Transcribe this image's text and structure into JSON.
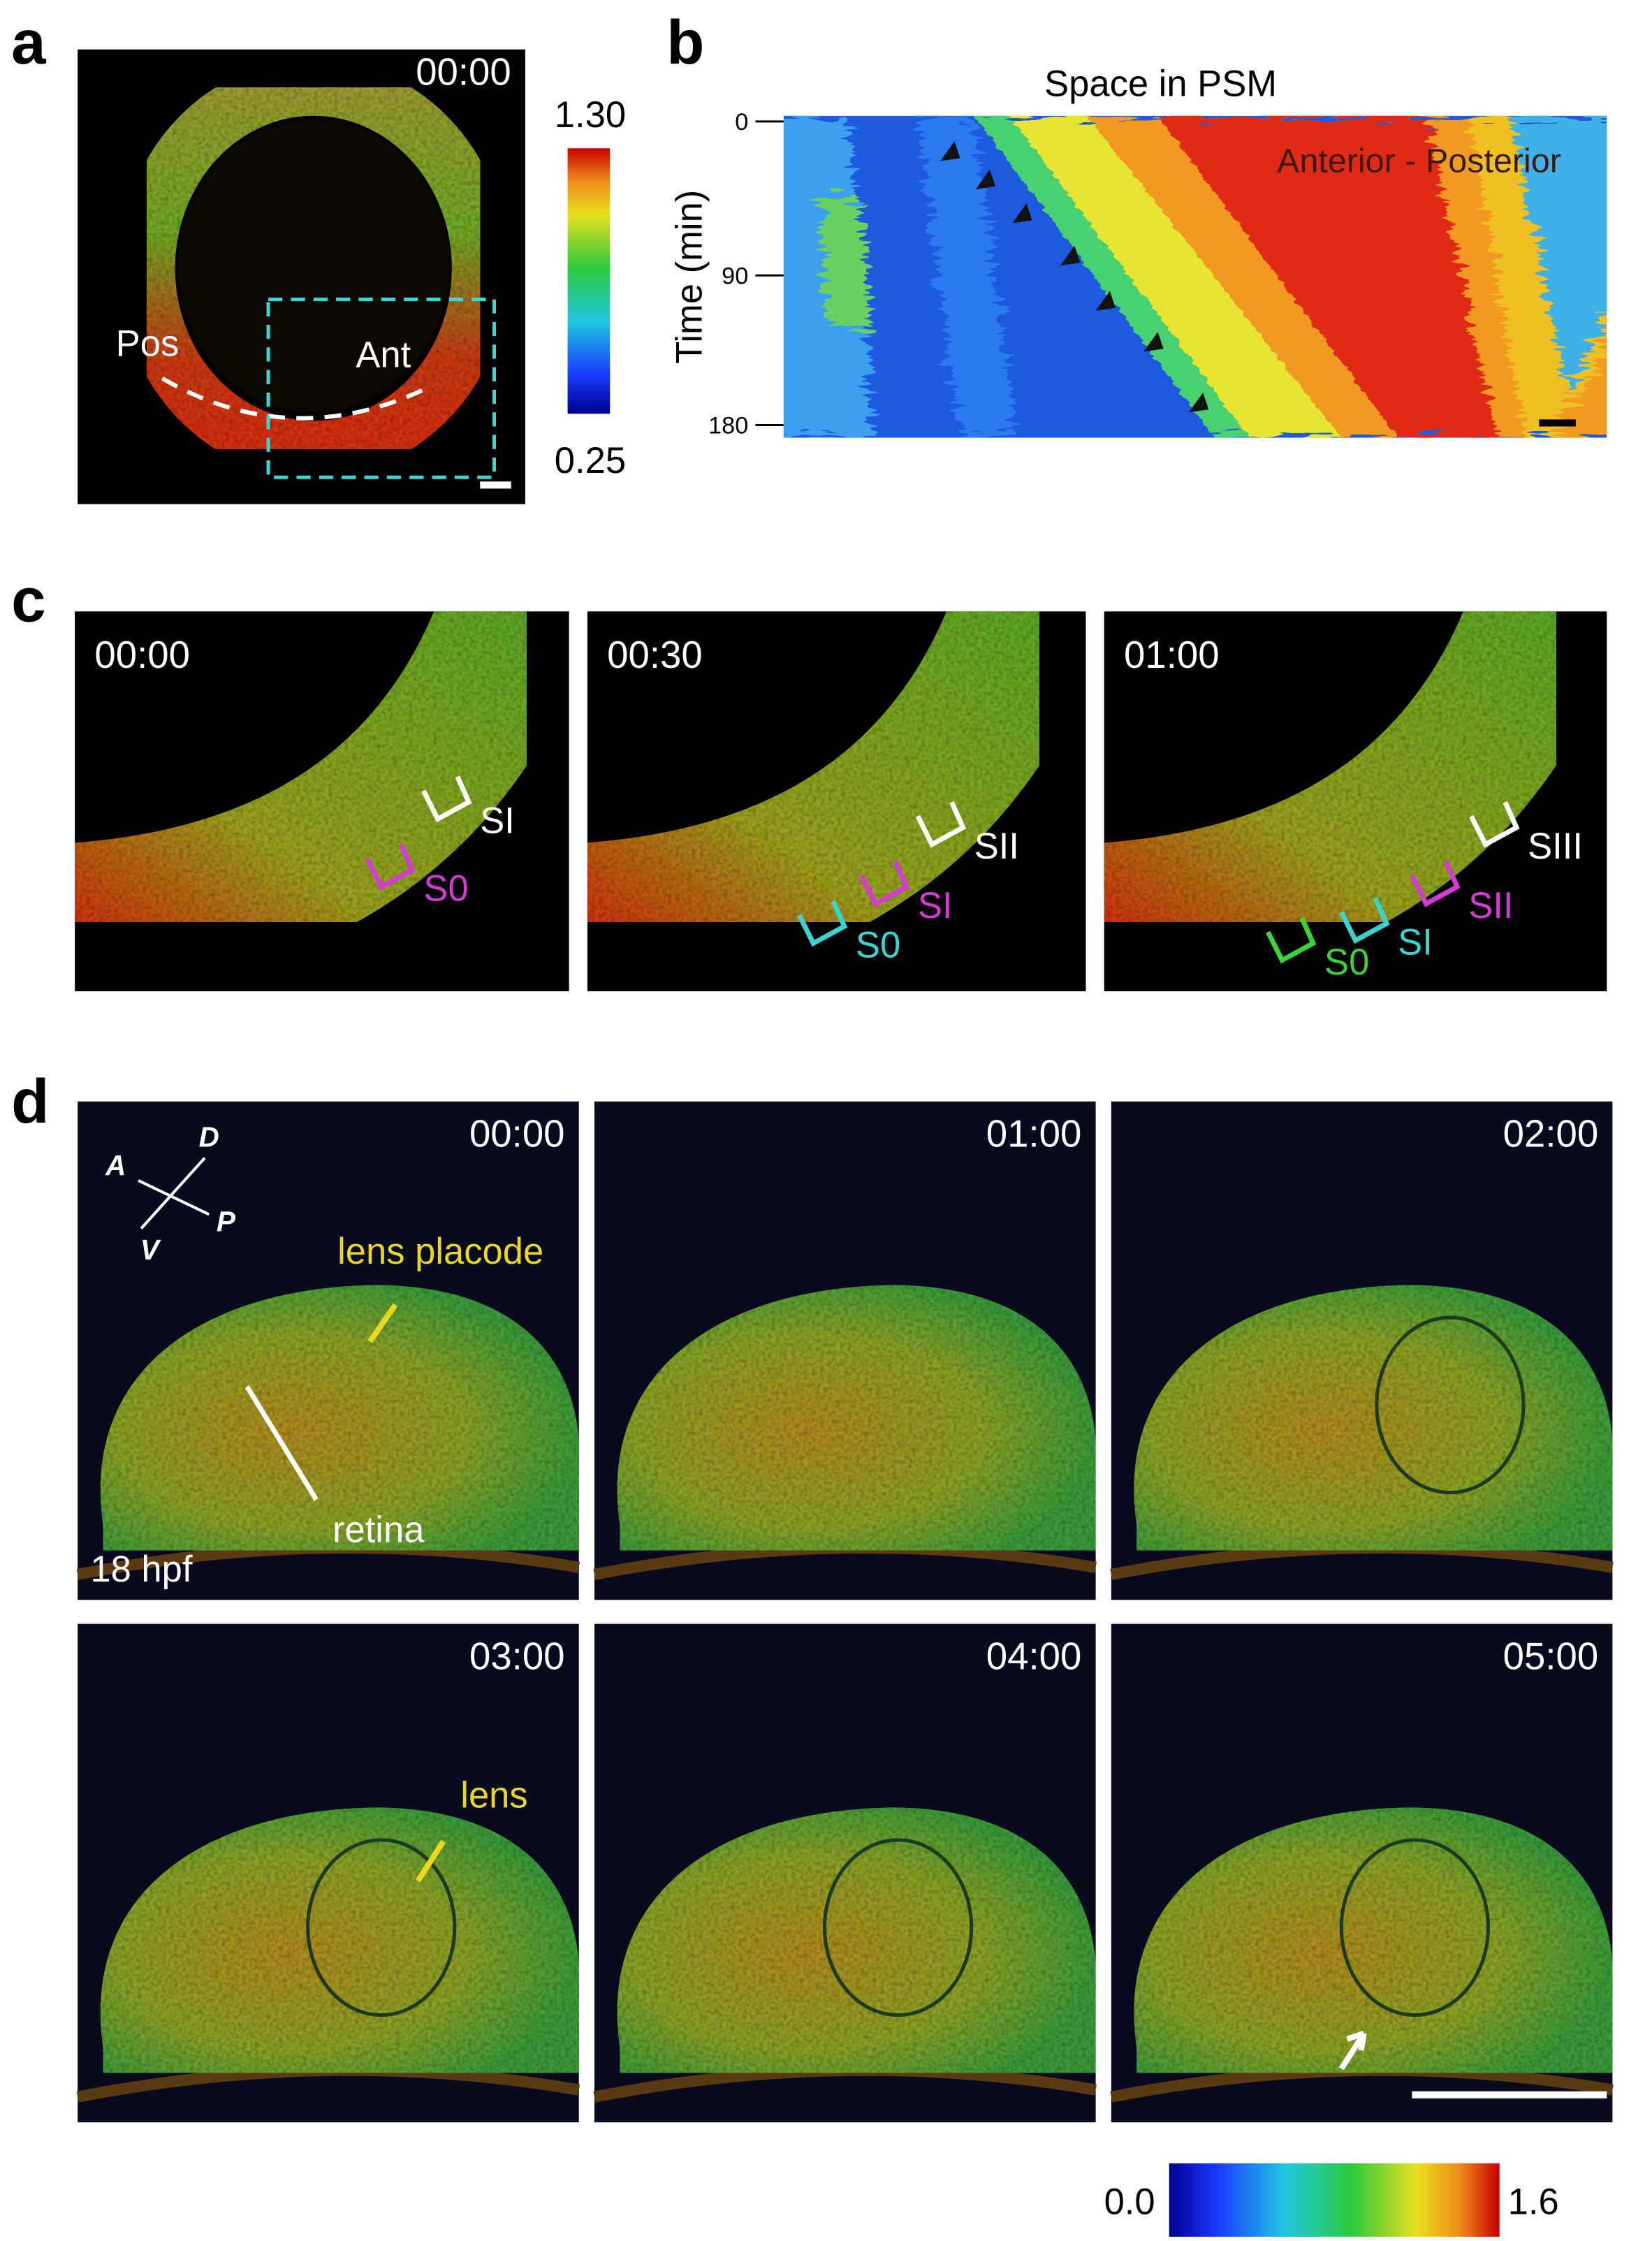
{
  "figure": {
    "a": {
      "label": "a",
      "time": "00:00",
      "labels": [
        "Pos",
        "Ant"
      ],
      "colorbar": {
        "max": "1.30",
        "min": "0.25"
      }
    },
    "b": {
      "label": "b",
      "title": "Space in PSM",
      "y_axis_label": "Time (min)",
      "y_ticks": [
        "0",
        "90",
        "180"
      ],
      "annotation": "Anterior - Posterior"
    },
    "c": {
      "label": "c",
      "frames": [
        {
          "time": "00:00",
          "segments": [
            "SI",
            "S0"
          ]
        },
        {
          "time": "00:30",
          "segments": [
            "SII",
            "SI",
            "S0"
          ]
        },
        {
          "time": "01:00",
          "segments": [
            "SIII",
            "SII",
            "SI",
            "S0"
          ]
        }
      ]
    },
    "d": {
      "label": "d",
      "compass": [
        "D",
        "P",
        "V",
        "A"
      ],
      "frames": [
        "00:00",
        "01:00",
        "02:00",
        "03:00",
        "04:00",
        "05:00"
      ],
      "annotations": {
        "lens_placode": "lens placode",
        "retina": "retina",
        "stage": "18 hpf",
        "lens": "lens"
      },
      "colorbar": {
        "min": "0.0",
        "max": "1.6"
      }
    }
  }
}
